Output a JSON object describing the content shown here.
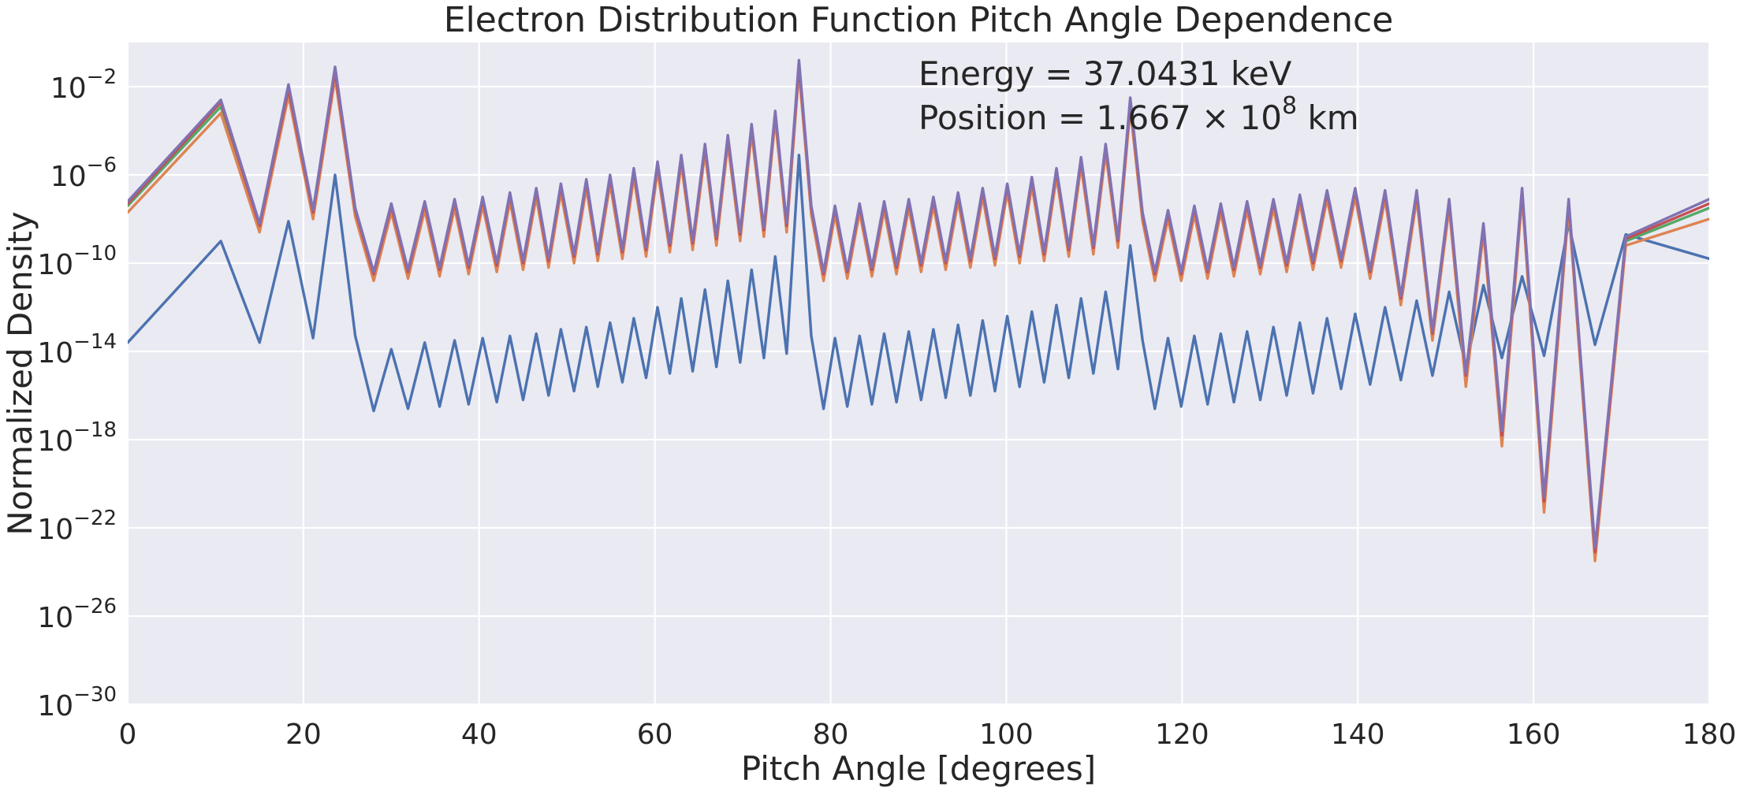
{
  "chart_data": {
    "type": "line",
    "title": "Electron Distribution Function Pitch Angle Dependence",
    "xlabel": "Pitch Angle [degrees]",
    "ylabel": "Normalized Density",
    "xlim": [
      0,
      180
    ],
    "ylim_log10": [
      -30,
      0
    ],
    "yscale": "log",
    "grid": true,
    "xticks": [
      0,
      20,
      40,
      60,
      80,
      100,
      120,
      140,
      160,
      180
    ],
    "xtick_labels": [
      "0",
      "20",
      "40",
      "60",
      "80",
      "100",
      "120",
      "140",
      "160",
      "180"
    ],
    "yticks_log10": [
      -30,
      -26,
      -22,
      -18,
      -14,
      -10,
      -6,
      -2
    ],
    "ytick_base": "10",
    "ytick_exponents": [
      "−30",
      "−26",
      "−22",
      "−18",
      "−14",
      "−10",
      "−6",
      "−2"
    ],
    "annotations": {
      "energy": "Energy = 37.0431 keV",
      "position_prefix": "Position = 1.667 × 10",
      "position_exp": "8",
      "position_suffix": " km"
    },
    "colors": {
      "plot_bg": "#eaeaf2",
      "grid": "#ffffff",
      "series": [
        "#4c72b0",
        "#55a868",
        "#dd8452",
        "#c44e52",
        "#8172b3"
      ]
    },
    "x": [
      0,
      10.6,
      15.0,
      18.3,
      21.1,
      23.6,
      25.9,
      28.0,
      30.0,
      31.9,
      33.8,
      35.5,
      37.2,
      38.8,
      40.4,
      42.0,
      43.5,
      45.0,
      46.5,
      47.9,
      49.3,
      50.8,
      52.2,
      53.5,
      54.9,
      56.3,
      57.6,
      59.0,
      60.3,
      61.7,
      63.0,
      64.3,
      65.7,
      67.0,
      68.3,
      69.7,
      71.0,
      72.4,
      73.7,
      75.0,
      76.4,
      77.8,
      79.2,
      80.5,
      81.9,
      83.3,
      84.7,
      86.1,
      87.5,
      88.9,
      90.3,
      91.7,
      93.1,
      94.5,
      95.9,
      97.3,
      98.7,
      100.1,
      101.5,
      102.9,
      104.3,
      105.7,
      107.1,
      108.5,
      109.9,
      111.3,
      112.7,
      114.1,
      115.5,
      116.9,
      118.4,
      119.9,
      121.4,
      122.9,
      124.4,
      125.9,
      127.4,
      128.9,
      130.4,
      131.9,
      133.4,
      134.9,
      136.5,
      138.1,
      139.7,
      141.4,
      143.1,
      144.9,
      146.7,
      148.5,
      150.4,
      152.3,
      154.3,
      156.4,
      158.7,
      161.2,
      164.0,
      167.0,
      170.5,
      180
    ],
    "series": [
      {
        "y_log10": [
          -13.6,
          -9.0,
          -13.6,
          -8.1,
          -13.4,
          -6.0,
          -13.3,
          -16.7,
          -13.9,
          -16.6,
          -13.6,
          -16.5,
          -13.5,
          -16.4,
          -13.4,
          -16.3,
          -13.3,
          -16.2,
          -13.2,
          -16.0,
          -13.0,
          -15.8,
          -12.9,
          -15.6,
          -12.7,
          -15.4,
          -12.5,
          -15.2,
          -12.0,
          -15.0,
          -11.6,
          -14.9,
          -11.2,
          -14.7,
          -10.8,
          -14.5,
          -10.3,
          -14.3,
          -9.7,
          -14.1,
          -5.1,
          -13.3,
          -16.6,
          -13.4,
          -16.5,
          -13.3,
          -16.4,
          -13.2,
          -16.3,
          -13.1,
          -16.2,
          -13.0,
          -16.1,
          -12.8,
          -16.0,
          -12.6,
          -15.8,
          -12.4,
          -15.6,
          -12.2,
          -15.4,
          -11.9,
          -15.2,
          -11.6,
          -15.0,
          -11.3,
          -14.8,
          -9.2,
          -13.5,
          -16.6,
          -13.4,
          -16.5,
          -13.3,
          -16.4,
          -13.2,
          -16.3,
          -13.1,
          -16.2,
          -12.9,
          -16.0,
          -12.7,
          -15.9,
          -12.5,
          -15.7,
          -12.3,
          -15.5,
          -12.0,
          -15.3,
          -11.7,
          -15.1,
          -11.3,
          -14.7,
          -11.0,
          -14.3,
          -10.6,
          -14.2,
          -8.2,
          -13.7,
          -8.7,
          -9.8
        ]
      },
      {
        "y_log10": [
          -7.4,
          -2.9,
          -8.4,
          -2.2,
          -7.8,
          -1.4,
          -7.7,
          -10.6,
          -7.5,
          -10.5,
          -7.4,
          -10.4,
          -7.3,
          -10.3,
          -7.2,
          -10.2,
          -7.0,
          -10.1,
          -6.8,
          -10.0,
          -6.6,
          -9.8,
          -6.4,
          -9.7,
          -6.2,
          -9.6,
          -5.9,
          -9.5,
          -5.6,
          -9.3,
          -5.3,
          -9.2,
          -4.8,
          -9.0,
          -4.4,
          -8.8,
          -3.9,
          -8.6,
          -3.3,
          -8.4,
          -1.1,
          -7.6,
          -10.6,
          -7.6,
          -10.5,
          -7.5,
          -10.4,
          -7.4,
          -10.3,
          -7.3,
          -10.2,
          -7.2,
          -10.1,
          -7.0,
          -10.0,
          -6.8,
          -9.9,
          -6.6,
          -9.8,
          -6.3,
          -9.7,
          -5.9,
          -9.5,
          -5.4,
          -9.4,
          -4.8,
          -9.1,
          -2.8,
          -7.9,
          -10.6,
          -7.8,
          -10.6,
          -7.6,
          -10.5,
          -7.5,
          -10.4,
          -7.4,
          -10.3,
          -7.3,
          -10.2,
          -7.1,
          -10.1,
          -6.9,
          -10.0,
          -6.8,
          -10.5,
          -6.9,
          -11.7,
          -6.9,
          -13.3,
          -7.3,
          -15.3,
          -8.4,
          -18.0,
          -6.8,
          -21.0,
          -7.3,
          -23.3,
          -9.0,
          -7.5
        ]
      },
      {
        "y_log10": [
          -7.7,
          -3.2,
          -8.6,
          -2.4,
          -8.0,
          -1.6,
          -7.9,
          -10.8,
          -7.7,
          -10.7,
          -7.6,
          -10.6,
          -7.5,
          -10.5,
          -7.4,
          -10.4,
          -7.2,
          -10.3,
          -7.0,
          -10.2,
          -6.8,
          -10.0,
          -6.6,
          -9.9,
          -6.4,
          -9.8,
          -6.1,
          -9.7,
          -5.8,
          -9.5,
          -5.5,
          -9.4,
          -5.0,
          -9.2,
          -4.6,
          -9.0,
          -4.1,
          -8.8,
          -3.5,
          -8.6,
          -1.3,
          -7.8,
          -10.8,
          -7.8,
          -10.7,
          -7.7,
          -10.6,
          -7.6,
          -10.5,
          -7.5,
          -10.4,
          -7.4,
          -10.3,
          -7.2,
          -10.2,
          -7.0,
          -10.1,
          -6.8,
          -10.0,
          -6.5,
          -9.9,
          -6.1,
          -9.7,
          -5.6,
          -9.6,
          -5.0,
          -9.3,
          -3.0,
          -8.1,
          -10.8,
          -8.0,
          -10.8,
          -7.8,
          -10.7,
          -7.7,
          -10.6,
          -7.6,
          -10.5,
          -7.5,
          -10.4,
          -7.3,
          -10.3,
          -7.1,
          -10.2,
          -7.0,
          -10.7,
          -7.1,
          -11.9,
          -7.1,
          -13.5,
          -7.5,
          -15.6,
          -8.6,
          -18.3,
          -7.0,
          -21.3,
          -7.5,
          -23.5,
          -9.2,
          -8.0
        ]
      },
      {
        "y_log10": [
          -7.3,
          -2.7,
          -8.3,
          -2.1,
          -7.7,
          -1.3,
          -7.6,
          -10.5,
          -7.4,
          -10.4,
          -7.3,
          -10.3,
          -7.2,
          -10.2,
          -7.1,
          -10.1,
          -6.9,
          -10.0,
          -6.7,
          -9.9,
          -6.5,
          -9.7,
          -6.3,
          -9.6,
          -6.1,
          -9.5,
          -5.8,
          -9.4,
          -5.5,
          -9.2,
          -5.2,
          -9.1,
          -4.7,
          -8.9,
          -4.3,
          -8.7,
          -3.8,
          -8.5,
          -3.2,
          -8.3,
          -1.0,
          -7.5,
          -10.5,
          -7.5,
          -10.4,
          -7.4,
          -10.3,
          -7.3,
          -10.2,
          -7.2,
          -10.1,
          -7.1,
          -10.0,
          -6.9,
          -9.9,
          -6.7,
          -9.8,
          -6.5,
          -9.7,
          -6.2,
          -9.6,
          -5.8,
          -9.4,
          -5.3,
          -9.3,
          -4.7,
          -9.0,
          -2.7,
          -7.8,
          -10.5,
          -7.7,
          -10.5,
          -7.5,
          -10.4,
          -7.4,
          -10.3,
          -7.3,
          -10.2,
          -7.2,
          -10.1,
          -7.0,
          -10.0,
          -6.8,
          -9.9,
          -6.7,
          -10.4,
          -6.8,
          -11.6,
          -6.8,
          -13.2,
          -7.2,
          -15.1,
          -8.3,
          -17.8,
          -6.7,
          -20.8,
          -7.2,
          -23.1,
          -8.9,
          -7.3
        ]
      },
      {
        "y_log10": [
          -7.2,
          -2.6,
          -8.2,
          -1.9,
          -7.6,
          -1.1,
          -7.5,
          -10.4,
          -7.3,
          -10.3,
          -7.2,
          -10.2,
          -7.1,
          -10.1,
          -7.0,
          -10.0,
          -6.8,
          -9.9,
          -6.6,
          -9.8,
          -6.4,
          -9.6,
          -6.2,
          -9.5,
          -6.0,
          -9.4,
          -5.7,
          -9.3,
          -5.4,
          -9.1,
          -5.1,
          -9.0,
          -4.6,
          -8.8,
          -4.2,
          -8.6,
          -3.7,
          -8.4,
          -3.1,
          -8.2,
          -0.8,
          -7.4,
          -10.4,
          -7.4,
          -10.3,
          -7.3,
          -10.2,
          -7.2,
          -10.1,
          -7.1,
          -10.0,
          -7.0,
          -9.9,
          -6.8,
          -9.8,
          -6.6,
          -9.7,
          -6.4,
          -9.6,
          -6.1,
          -9.5,
          -5.7,
          -9.3,
          -5.2,
          -9.2,
          -4.6,
          -8.9,
          -2.5,
          -7.7,
          -10.4,
          -7.6,
          -10.4,
          -7.4,
          -10.3,
          -7.3,
          -10.2,
          -7.2,
          -10.1,
          -7.1,
          -10.0,
          -6.9,
          -9.9,
          -6.7,
          -9.8,
          -6.6,
          -10.3,
          -6.7,
          -11.5,
          -6.7,
          -13.1,
          -7.1,
          -15.0,
          -8.2,
          -17.6,
          -6.6,
          -20.6,
          -7.1,
          -22.9,
          -8.8,
          -7.1
        ]
      }
    ]
  }
}
